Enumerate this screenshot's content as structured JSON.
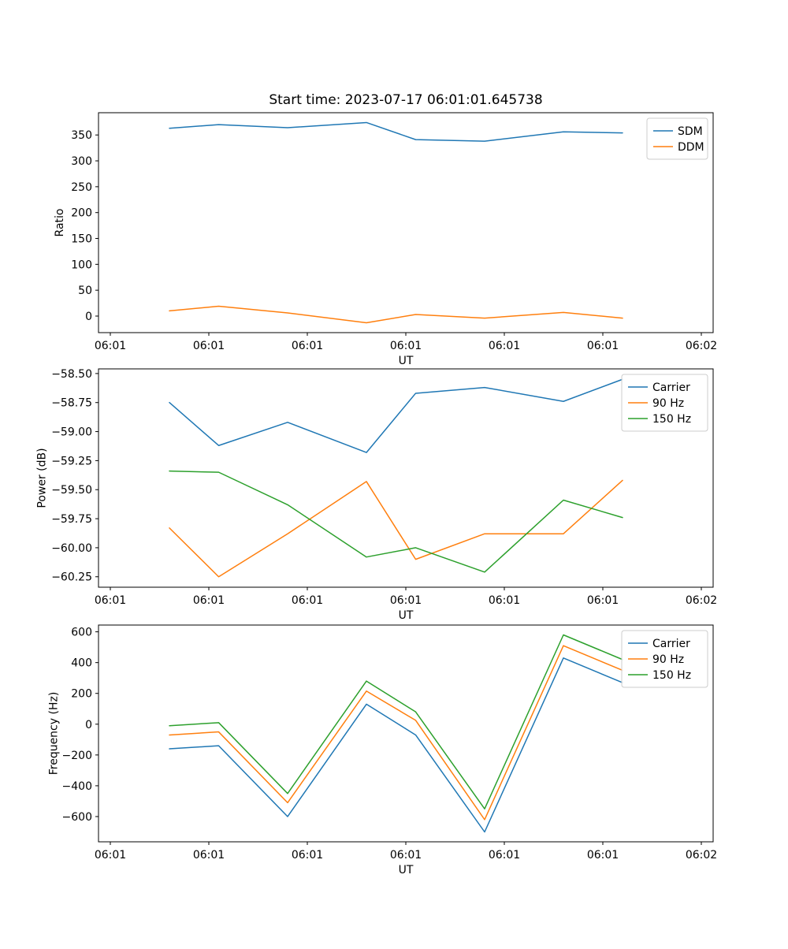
{
  "figure": {
    "title": "Start time: 2023-07-17 06:01:01.645738",
    "background_color": "#ffffff",
    "text_color": "#000000"
  },
  "colors": {
    "blue": "#1f77b4",
    "orange": "#ff7f0e",
    "green": "#2ca02c",
    "legend_edge": "#cccccc",
    "axes_edge": "#000000"
  },
  "chart_data": [
    {
      "type": "line",
      "title": "",
      "xlabel": "UT",
      "ylabel": "Ratio",
      "xlim": [
        -1.2,
        61.2
      ],
      "ylim": [
        -32,
        393
      ],
      "grid": false,
      "legend_position": "upper right",
      "x_seconds": [
        6,
        11,
        18,
        26,
        31,
        38,
        46,
        52
      ],
      "x_ticks": [
        0,
        10,
        20,
        30,
        40,
        50,
        60
      ],
      "x_ticklabels": [
        "06:01",
        "06:01",
        "06:01",
        "06:01",
        "06:01",
        "06:01",
        "06:02"
      ],
      "y_ticks": [
        0,
        50,
        100,
        150,
        200,
        250,
        300,
        350
      ],
      "y_ticklabels": [
        "0",
        "50",
        "100",
        "150",
        "200",
        "250",
        "300",
        "350"
      ],
      "series": [
        {
          "name": "SDM",
          "color": "#1f77b4",
          "values": [
            363,
            370,
            364,
            374,
            341,
            338,
            356,
            354
          ]
        },
        {
          "name": "DDM",
          "color": "#ff7f0e",
          "values": [
            10,
            19,
            6,
            -13,
            3,
            -4,
            7,
            -4
          ]
        }
      ]
    },
    {
      "type": "line",
      "title": "",
      "xlabel": "UT",
      "ylabel": "Power (dB)",
      "xlim": [
        -1.2,
        61.2
      ],
      "ylim": [
        -60.34,
        -58.46
      ],
      "grid": false,
      "legend_position": "upper right",
      "x_seconds": [
        6,
        11,
        18,
        26,
        31,
        38,
        46,
        52
      ],
      "x_ticks": [
        0,
        10,
        20,
        30,
        40,
        50,
        60
      ],
      "x_ticklabels": [
        "06:01",
        "06:01",
        "06:01",
        "06:01",
        "06:01",
        "06:01",
        "06:02"
      ],
      "y_ticks": [
        -60.25,
        -60.0,
        -59.75,
        -59.5,
        -59.25,
        -59.0,
        -58.75,
        -58.5
      ],
      "y_ticklabels": [
        "−60.25",
        "−60.00",
        "−59.75",
        "−59.50",
        "−59.25",
        "−59.00",
        "−58.75",
        "−58.50"
      ],
      "series": [
        {
          "name": "Carrier",
          "color": "#1f77b4",
          "values": [
            -58.75,
            -59.12,
            -58.92,
            -59.18,
            -58.67,
            -58.62,
            -58.74,
            -58.55
          ]
        },
        {
          "name": "90 Hz",
          "color": "#ff7f0e",
          "values": [
            -59.83,
            -60.25,
            -59.88,
            -59.43,
            -60.1,
            -59.88,
            -59.88,
            -59.42
          ]
        },
        {
          "name": "150 Hz",
          "color": "#2ca02c",
          "values": [
            -59.34,
            -59.35,
            -59.63,
            -60.08,
            -60.0,
            -60.21,
            -59.59,
            -59.74
          ]
        }
      ]
    },
    {
      "type": "line",
      "title": "",
      "xlabel": "UT",
      "ylabel": "Frequency (Hz)",
      "xlim": [
        -1.2,
        61.2
      ],
      "ylim": [
        -764,
        644
      ],
      "grid": false,
      "legend_position": "upper right",
      "x_seconds": [
        6,
        11,
        18,
        26,
        31,
        38,
        46,
        52
      ],
      "x_ticks": [
        0,
        10,
        20,
        30,
        40,
        50,
        60
      ],
      "x_ticklabels": [
        "06:01",
        "06:01",
        "06:01",
        "06:01",
        "06:01",
        "06:01",
        "06:02"
      ],
      "y_ticks": [
        -600,
        -400,
        -200,
        0,
        200,
        400,
        600
      ],
      "y_ticklabels": [
        "−600",
        "−400",
        "−200",
        "0",
        "200",
        "400",
        "600"
      ],
      "series": [
        {
          "name": "Carrier",
          "color": "#1f77b4",
          "values": [
            -160,
            -140,
            -600,
            130,
            -70,
            -700,
            430,
            270
          ]
        },
        {
          "name": "90 Hz",
          "color": "#ff7f0e",
          "values": [
            -70,
            -50,
            -510,
            215,
            25,
            -620,
            510,
            350
          ]
        },
        {
          "name": "150 Hz",
          "color": "#2ca02c",
          "values": [
            -10,
            10,
            -450,
            280,
            80,
            -550,
            580,
            420
          ]
        }
      ]
    }
  ]
}
